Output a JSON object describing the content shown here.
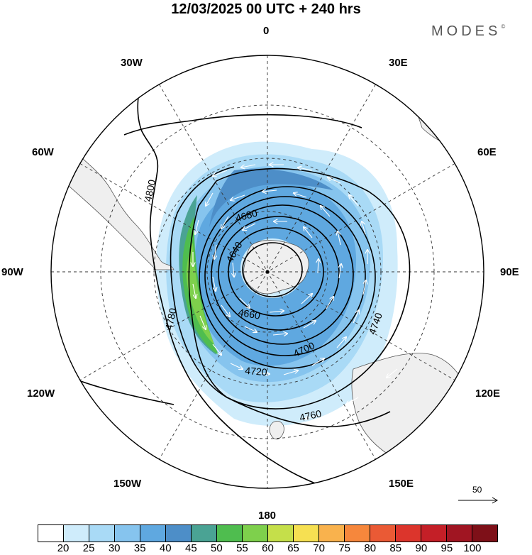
{
  "header": {
    "title": "12/03/2025  00 UTC  + 240 hrs",
    "brand": "MODES",
    "brand_mark": "©"
  },
  "map": {
    "projection": "south polar stereographic",
    "meridian_labels": [
      "0",
      "30E",
      "60E",
      "90E",
      "120E",
      "150E",
      "180",
      "150W",
      "120W",
      "90W",
      "60W",
      "30W"
    ],
    "contour_labels": [
      "4640",
      "4660",
      "4680",
      "4700",
      "4720",
      "4740",
      "4760",
      "4780",
      "4800"
    ],
    "contour_interval": 20,
    "wind_reference": {
      "value": "50",
      "icon": "arrow-right-icon"
    },
    "colors": {
      "land": "#efefef",
      "contour": "#000000",
      "vectors": "#ffffff",
      "grid": "#333333"
    }
  },
  "colorbar": {
    "labels": [
      "20",
      "25",
      "30",
      "35",
      "40",
      "45",
      "50",
      "55",
      "60",
      "65",
      "70",
      "75",
      "80",
      "85",
      "90",
      "95",
      "100"
    ],
    "colors": [
      "#ffffff",
      "#cfecfb",
      "#a9daf6",
      "#86c4ee",
      "#5fa8e0",
      "#4d8ec8",
      "#4aa394",
      "#4fbd4f",
      "#7ed04c",
      "#c5df4a",
      "#f6e052",
      "#f9b24d",
      "#f6873c",
      "#ea5a35",
      "#dc352c",
      "#c41f27",
      "#a01522",
      "#7e1018"
    ]
  }
}
